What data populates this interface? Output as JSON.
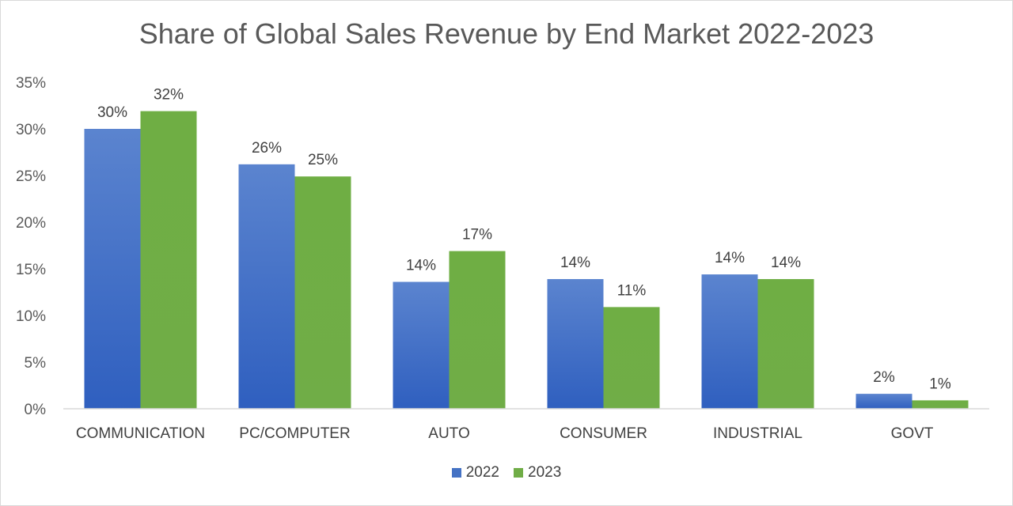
{
  "chart_data": {
    "type": "bar",
    "title": "Share of Global Sales Revenue by End Market 2022-2023",
    "categories": [
      "COMMUNICATION",
      "PC/COMPUTER",
      "AUTO",
      "CONSUMER",
      "INDUSTRIAL",
      "GOVT"
    ],
    "series": [
      {
        "name": "2022",
        "values": [
          30,
          26.2,
          13.6,
          13.9,
          14.4,
          1.6
        ],
        "labels": [
          "30%",
          "26%",
          "14%",
          "14%",
          "14%",
          "2%"
        ],
        "color": "#4472c4"
      },
      {
        "name": "2023",
        "values": [
          31.9,
          24.9,
          16.9,
          10.9,
          13.9,
          0.9
        ],
        "labels": [
          "32%",
          "25%",
          "17%",
          "11%",
          "14%",
          "1%"
        ],
        "color": "#70ad47"
      }
    ],
    "ylim": [
      0,
      35
    ],
    "yticks": [
      0,
      5,
      10,
      15,
      20,
      25,
      30,
      35
    ],
    "ytick_labels": [
      "0%",
      "5%",
      "10%",
      "15%",
      "20%",
      "25%",
      "30%",
      "35%"
    ],
    "grid": false,
    "legend_position": "bottom"
  }
}
